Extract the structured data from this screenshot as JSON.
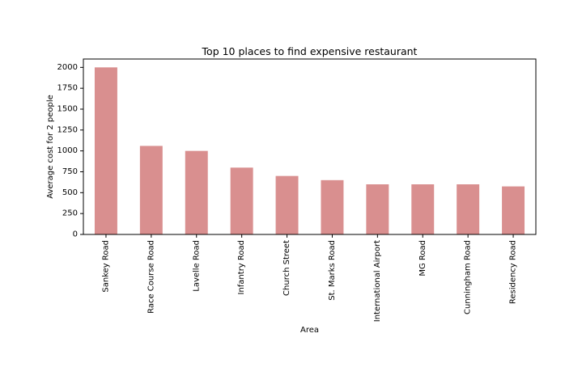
{
  "chart_data": {
    "type": "bar",
    "title": "Top 10 places to find expensive restaurant",
    "xlabel": "Area",
    "ylabel": "Average cost for 2 people",
    "categories": [
      "Sankey Road",
      "Race Course Road",
      "Lavelle Road",
      "Infantry Road",
      "Church Street",
      "St. Marks Road",
      "International Airport",
      "MG Road",
      "Cunningham Road",
      "Residency Road"
    ],
    "values": [
      2000,
      1060,
      1000,
      800,
      700,
      650,
      600,
      600,
      600,
      575
    ],
    "ylim": [
      0,
      2100
    ],
    "yticks": [
      0,
      250,
      500,
      750,
      1000,
      1250,
      1500,
      1750,
      2000
    ],
    "bar_color": "#d98f8f",
    "grid": false,
    "legend": "none"
  }
}
